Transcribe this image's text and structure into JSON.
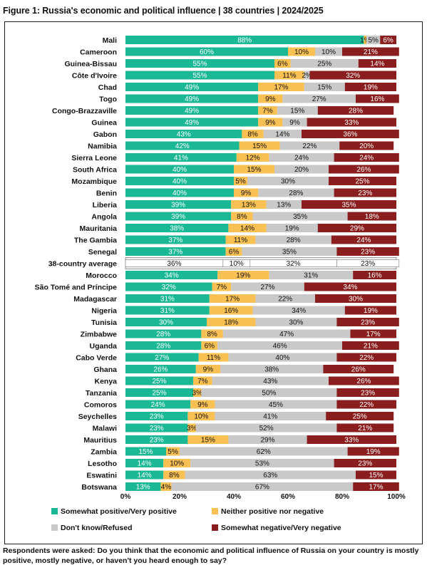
{
  "title": "Figure 1: Russia's economic and political influence | 38 countries | 2024/2025",
  "note": "Respondents were asked: Do you think that the economic and political influence of Russia on your country is mostly positive, mostly negative, or haven't you heard enough to say?",
  "colors": {
    "positive": "#1bb896",
    "neither": "#f9c053",
    "dontknow": "#c9c9c9",
    "negative": "#8a1e1e"
  },
  "chart_data": {
    "type": "bar",
    "orientation": "horizontal",
    "stacked": true,
    "xlim": [
      0,
      100
    ],
    "x_ticks": [
      "0%",
      "20%",
      "40%",
      "60%",
      "80%",
      "100%"
    ],
    "legend_position": "bottom",
    "series": [
      {
        "name": "Somewhat positive/Very positive",
        "color": "#1bb896"
      },
      {
        "name": "Neither positive nor negative",
        "color": "#f9c053"
      },
      {
        "name": "Don't know/Refused",
        "color": "#c9c9c9"
      },
      {
        "name": "Somewhat negative/Very negative",
        "color": "#8a1e1e"
      }
    ],
    "rows": [
      {
        "label": "Mali",
        "values": [
          88,
          1,
          5,
          6
        ]
      },
      {
        "label": "Cameroon",
        "values": [
          60,
          10,
          10,
          21
        ]
      },
      {
        "label": "Guinea-Bissau",
        "values": [
          55,
          6,
          25,
          14
        ]
      },
      {
        "label": "Côte d'Ivoire",
        "values": [
          55,
          11,
          2,
          32
        ]
      },
      {
        "label": "Chad",
        "values": [
          49,
          17,
          15,
          19
        ]
      },
      {
        "label": "Togo",
        "values": [
          49,
          9,
          27,
          16
        ]
      },
      {
        "label": "Congo-Brazzaville",
        "values": [
          49,
          7,
          15,
          28
        ]
      },
      {
        "label": "Guinea",
        "values": [
          49,
          9,
          9,
          33
        ]
      },
      {
        "label": "Gabon",
        "values": [
          43,
          8,
          14,
          36
        ]
      },
      {
        "label": "Namibia",
        "values": [
          42,
          15,
          22,
          20
        ]
      },
      {
        "label": "Sierra Leone",
        "values": [
          41,
          12,
          24,
          24
        ]
      },
      {
        "label": "South Africa",
        "values": [
          40,
          15,
          20,
          26
        ]
      },
      {
        "label": "Mozambique",
        "values": [
          40,
          5,
          30,
          25
        ]
      },
      {
        "label": "Benin",
        "values": [
          40,
          9,
          28,
          23
        ]
      },
      {
        "label": "Liberia",
        "values": [
          39,
          13,
          13,
          35
        ]
      },
      {
        "label": "Angola",
        "values": [
          39,
          8,
          35,
          18
        ]
      },
      {
        "label": "Mauritania",
        "values": [
          38,
          14,
          19,
          29
        ]
      },
      {
        "label": "The Gambia",
        "values": [
          37,
          11,
          28,
          24
        ]
      },
      {
        "label": "Senegal",
        "values": [
          37,
          6,
          35,
          23
        ]
      },
      {
        "label": "38-country average",
        "values": [
          36,
          10,
          32,
          23
        ],
        "average": true
      },
      {
        "label": "Morocco",
        "values": [
          34,
          19,
          31,
          16
        ]
      },
      {
        "label": "São Tomé and Príncipe",
        "values": [
          32,
          7,
          27,
          34
        ]
      },
      {
        "label": "Madagascar",
        "values": [
          31,
          17,
          22,
          30
        ]
      },
      {
        "label": "Nigeria",
        "values": [
          31,
          16,
          34,
          19
        ]
      },
      {
        "label": "Tunisia",
        "values": [
          30,
          18,
          30,
          23
        ]
      },
      {
        "label": "Zimbabwe",
        "values": [
          28,
          8,
          47,
          17
        ]
      },
      {
        "label": "Uganda",
        "values": [
          28,
          6,
          46,
          21
        ]
      },
      {
        "label": "Cabo Verde",
        "values": [
          27,
          11,
          40,
          22
        ]
      },
      {
        "label": "Ghana",
        "values": [
          26,
          9,
          38,
          26
        ]
      },
      {
        "label": "Kenya",
        "values": [
          25,
          7,
          43,
          26
        ]
      },
      {
        "label": "Tanzania",
        "values": [
          25,
          3,
          50,
          23
        ]
      },
      {
        "label": "Comoros",
        "values": [
          24,
          9,
          45,
          22
        ]
      },
      {
        "label": "Seychelles",
        "values": [
          23,
          10,
          41,
          25
        ]
      },
      {
        "label": "Malawi",
        "values": [
          23,
          3,
          52,
          21
        ]
      },
      {
        "label": "Mauritius",
        "values": [
          23,
          15,
          29,
          33
        ]
      },
      {
        "label": "Zambia",
        "values": [
          15,
          5,
          62,
          19
        ]
      },
      {
        "label": "Lesotho",
        "values": [
          14,
          10,
          53,
          23
        ]
      },
      {
        "label": "Eswatini",
        "values": [
          14,
          8,
          63,
          15
        ]
      },
      {
        "label": "Botswana",
        "values": [
          13,
          4,
          67,
          17
        ]
      }
    ]
  }
}
